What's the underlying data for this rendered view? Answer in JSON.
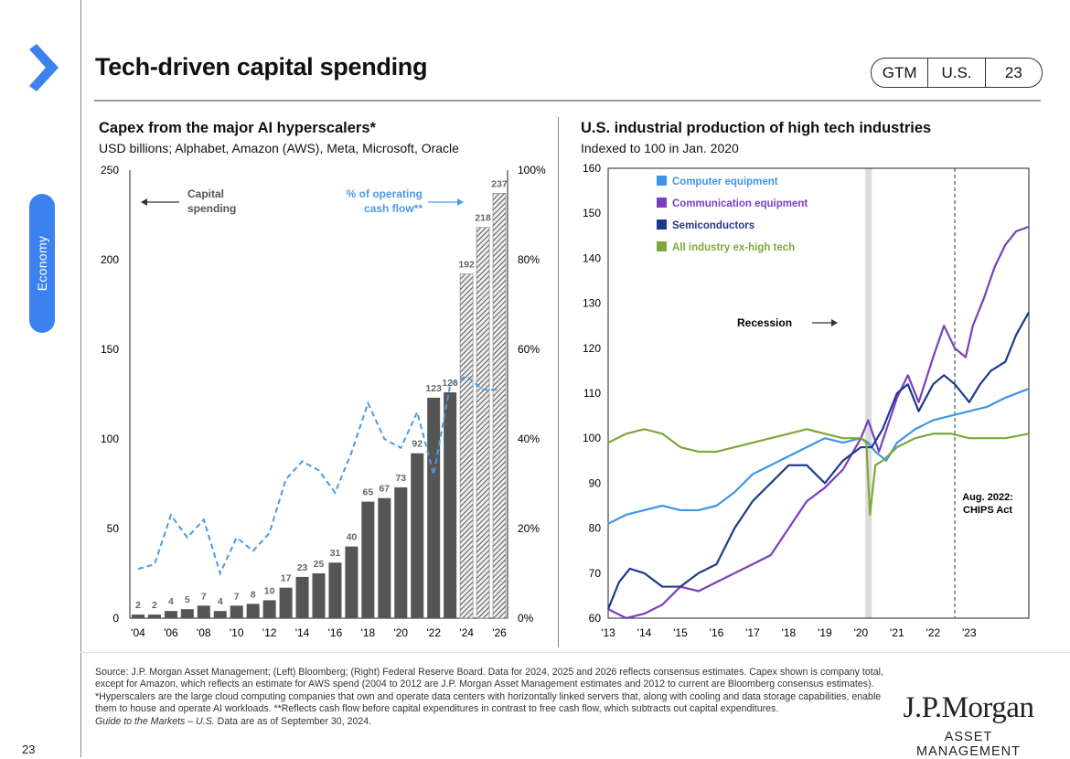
{
  "sidebar": {
    "section_label": "Economy",
    "page_number": "23",
    "brand_color": "#3b82f0"
  },
  "header": {
    "title": "Tech-driven capital spending",
    "badge": {
      "guide": "GTM",
      "region": "U.S.",
      "page": "23"
    }
  },
  "footnote": {
    "text": "Source: J.P. Morgan Asset Management; (Left) Bloomberg; (Right) Federal Reserve Board. Data for 2024, 2025 and 2026 reflects consensus estimates. Capex shown is company total, except for Amazon, which reflects an estimate for AWS spend (2004 to 2012 are J.P. Morgan Asset Management estimates and 2012 to current are Bloomberg consensus estimates). *Hyperscalers are the large cloud computing companies that own and operate data centers with horizontally linked servers that, along with cooling and data storage capabilities, enable them to house and operate AI workloads. **Reflects cash flow before capital expenditures in contrast to free cash flow, which subtracts out capital expenditures.",
    "guide": "Guide to the Markets – U.S.",
    "asof": " Data are as of September 30, 2024."
  },
  "logo": {
    "name": "J.P.Morgan",
    "tagline": "ASSET MANAGEMENT"
  },
  "chart_data": [
    {
      "type": "bar",
      "title": "Capex from the major AI hyperscalers*",
      "subtitle": "USD billions; Alphabet, Amazon (AWS), Meta, Microsoft, Oracle",
      "years": [
        2004,
        2005,
        2006,
        2007,
        2008,
        2009,
        2010,
        2011,
        2012,
        2013,
        2014,
        2015,
        2016,
        2017,
        2018,
        2019,
        2020,
        2021,
        2022,
        2023,
        2024,
        2025,
        2026
      ],
      "x_tick_labels": [
        "'04",
        "'06",
        "'08",
        "'10",
        "'12",
        "'14",
        "'16",
        "'18",
        "'20",
        "'22",
        "'24",
        "'26"
      ],
      "x_tick_years": [
        2004,
        2006,
        2008,
        2010,
        2012,
        2014,
        2016,
        2018,
        2020,
        2022,
        2024,
        2026
      ],
      "series": [
        {
          "name": "Capital spending",
          "axis": "left",
          "color": "#555555",
          "values": [
            2,
            2,
            4,
            5,
            7,
            4,
            7,
            8,
            10,
            17,
            23,
            25,
            31,
            40,
            65,
            67,
            73,
            92,
            123,
            126,
            192,
            218,
            237
          ],
          "estimate_from": 2024
        },
        {
          "name": "% of operating cash flow**",
          "axis": "right",
          "color": "#4a9ae8",
          "style": "dashed",
          "values": [
            11,
            12,
            23,
            18,
            22,
            10,
            18,
            15,
            19,
            31,
            35,
            33,
            28,
            37,
            48,
            40,
            38,
            46,
            32,
            52,
            54,
            51,
            51
          ]
        }
      ],
      "ylim_left": [
        0,
        250
      ],
      "yticks_left": [
        0,
        50,
        100,
        150,
        200,
        250
      ],
      "ylim_right": [
        0,
        100
      ],
      "yticks_right": [
        "0%",
        "20%",
        "40%",
        "60%",
        "80%",
        "100%"
      ],
      "annotations": {
        "left_label": [
          "Capital",
          "spending"
        ],
        "right_label": [
          "% of operating",
          "cash flow**"
        ]
      }
    },
    {
      "type": "line",
      "title": "U.S. industrial production of high tech industries",
      "subtitle": "Indexed to 100 in Jan. 2020",
      "ylim": [
        60,
        160
      ],
      "yticks": [
        60,
        70,
        80,
        90,
        100,
        110,
        120,
        130,
        140,
        150,
        160
      ],
      "xlim": [
        2013.0,
        2024.65
      ],
      "x_tick_labels": [
        "'13",
        "'14",
        "'15",
        "'16",
        "'17",
        "'18",
        "'19",
        "'20",
        "'21",
        "'22",
        "'23"
      ],
      "x_tick_years": [
        2013,
        2014,
        2015,
        2016,
        2017,
        2018,
        2019,
        2020,
        2021,
        2022,
        2023
      ],
      "recession": {
        "label": "Recession",
        "start": 2020.12,
        "end": 2020.3
      },
      "chips_act": {
        "label": [
          "Aug. 2022:",
          "CHIPS  Act"
        ],
        "date": 2022.6
      },
      "legend_position": "top-left",
      "series": [
        {
          "name": "Computer equipment",
          "color": "#3e95e6",
          "x": [
            2013.0,
            2013.5,
            2014.0,
            2014.5,
            2015.0,
            2015.5,
            2016.0,
            2016.5,
            2017.0,
            2017.5,
            2018.0,
            2018.5,
            2019.0,
            2019.5,
            2020.0,
            2020.2,
            2020.4,
            2020.7,
            2021.0,
            2021.5,
            2022.0,
            2022.5,
            2023.0,
            2023.5,
            2024.0,
            2024.65
          ],
          "y": [
            81,
            83,
            84,
            85,
            84,
            84,
            85,
            88,
            92,
            94,
            96,
            98,
            100,
            99,
            100,
            99,
            97,
            95,
            99,
            102,
            104,
            105,
            106,
            107,
            109,
            111
          ]
        },
        {
          "name": "Communication equipment",
          "color": "#7a3fbf",
          "x": [
            2013.0,
            2013.5,
            2014.0,
            2014.5,
            2015.0,
            2015.5,
            2016.0,
            2016.5,
            2017.0,
            2017.5,
            2018.0,
            2018.5,
            2019.0,
            2019.5,
            2020.0,
            2020.2,
            2020.5,
            2021.0,
            2021.3,
            2021.6,
            2022.0,
            2022.3,
            2022.6,
            2022.9,
            2023.1,
            2023.4,
            2023.7,
            2024.0,
            2024.3,
            2024.65
          ],
          "y": [
            62,
            60,
            61,
            63,
            67,
            66,
            68,
            70,
            72,
            74,
            80,
            86,
            89,
            93,
            100,
            104,
            97,
            109,
            114,
            108,
            118,
            125,
            120,
            118,
            125,
            131,
            138,
            143,
            146,
            147
          ]
        },
        {
          "name": "Semiconductors",
          "color": "#1e3a8a",
          "x": [
            2013.0,
            2013.3,
            2013.6,
            2014.0,
            2014.5,
            2015.0,
            2015.5,
            2016.0,
            2016.5,
            2017.0,
            2017.5,
            2018.0,
            2018.5,
            2019.0,
            2019.5,
            2020.0,
            2020.3,
            2020.6,
            2021.0,
            2021.3,
            2021.6,
            2022.0,
            2022.3,
            2022.6,
            2023.0,
            2023.3,
            2023.6,
            2024.0,
            2024.3,
            2024.65
          ],
          "y": [
            62,
            68,
            71,
            70,
            67,
            67,
            70,
            72,
            80,
            86,
            90,
            94,
            94,
            90,
            95,
            98,
            98,
            102,
            110,
            112,
            106,
            112,
            114,
            112,
            108,
            112,
            115,
            117,
            123,
            128
          ]
        },
        {
          "name": "All industry ex-high tech",
          "color": "#7fa63b",
          "x": [
            2013.0,
            2013.5,
            2014.0,
            2014.5,
            2015.0,
            2015.5,
            2016.0,
            2016.5,
            2017.0,
            2017.5,
            2018.0,
            2018.5,
            2019.0,
            2019.5,
            2020.0,
            2020.15,
            2020.25,
            2020.4,
            2020.6,
            2021.0,
            2021.5,
            2022.0,
            2022.5,
            2023.0,
            2023.5,
            2024.0,
            2024.65
          ],
          "y": [
            99,
            101,
            102,
            101,
            98,
            97,
            97,
            98,
            99,
            100,
            101,
            102,
            101,
            100,
            100,
            99,
            83,
            94,
            95,
            98,
            100,
            101,
            101,
            100,
            100,
            100,
            101
          ]
        }
      ]
    }
  ]
}
